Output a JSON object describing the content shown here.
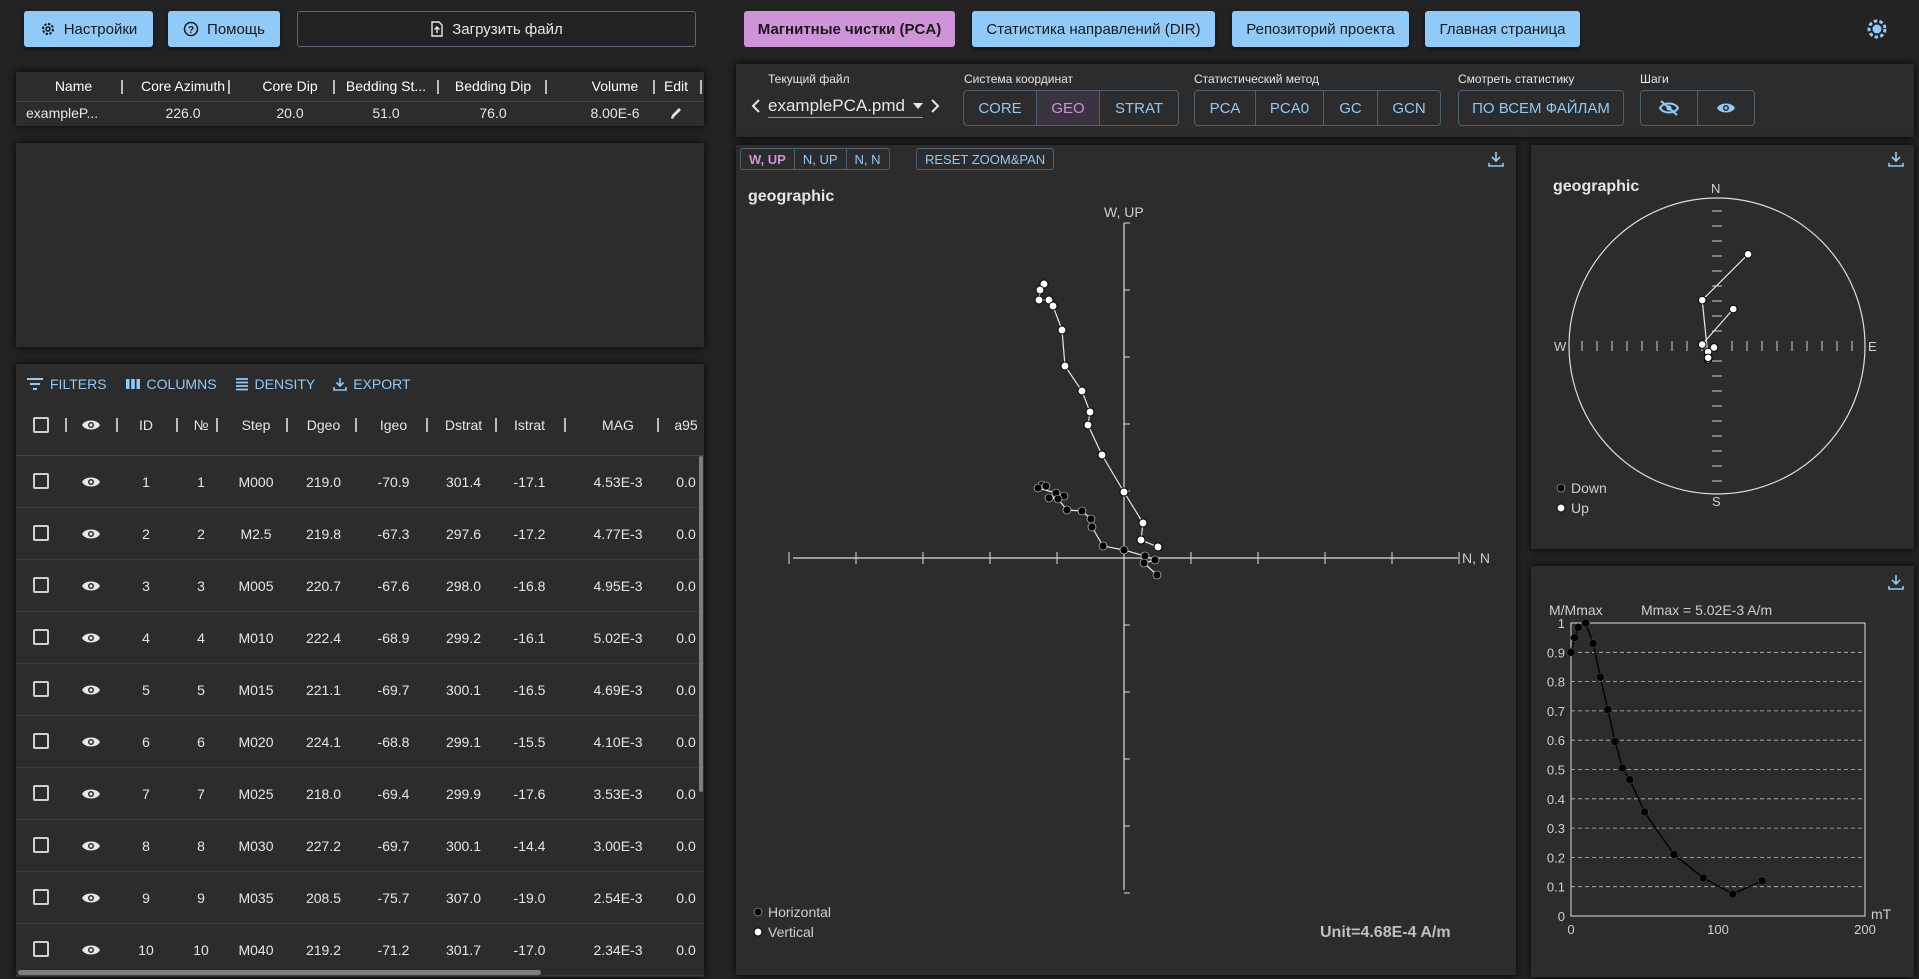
{
  "top_left": {
    "settings_label": "Настройки",
    "help_label": "Помощь",
    "upload_label": "Загрузить файл"
  },
  "file_table": {
    "columns": [
      "Name",
      "Core Azimuth",
      "Core Dip",
      "Bedding St...",
      "Bedding Dip",
      "Volume",
      "Edit"
    ],
    "row": [
      "exampleP...",
      "226.0",
      "20.0",
      "51.0",
      "76.0",
      "8.00E-6"
    ]
  },
  "toolbar": {
    "filters": "FILTERS",
    "columns": "COLUMNS",
    "density": "DENSITY",
    "export": "EXPORT"
  },
  "steps_table": {
    "columns": [
      "ID",
      "№",
      "Step",
      "Dgeo",
      "Igeo",
      "Dstrat",
      "Istrat",
      "MAG",
      "a95"
    ],
    "rows": [
      [
        "1",
        "1",
        "M000",
        "219.0",
        "-70.9",
        "301.4",
        "-17.1",
        "4.53E-3",
        "0.0"
      ],
      [
        "2",
        "2",
        "M2.5",
        "219.8",
        "-67.3",
        "297.6",
        "-17.2",
        "4.77E-3",
        "0.0"
      ],
      [
        "3",
        "3",
        "M005",
        "220.7",
        "-67.6",
        "298.0",
        "-16.8",
        "4.95E-3",
        "0.0"
      ],
      [
        "4",
        "4",
        "M010",
        "222.4",
        "-68.9",
        "299.2",
        "-16.1",
        "5.02E-3",
        "0.0"
      ],
      [
        "5",
        "5",
        "M015",
        "221.1",
        "-69.7",
        "300.1",
        "-16.5",
        "4.69E-3",
        "0.0"
      ],
      [
        "6",
        "6",
        "M020",
        "224.1",
        "-68.8",
        "299.1",
        "-15.5",
        "4.10E-3",
        "0.0"
      ],
      [
        "7",
        "7",
        "M025",
        "218.0",
        "-69.4",
        "299.9",
        "-17.6",
        "3.53E-3",
        "0.0"
      ],
      [
        "8",
        "8",
        "M030",
        "227.2",
        "-69.7",
        "300.1",
        "-14.4",
        "3.00E-3",
        "0.0"
      ],
      [
        "9",
        "9",
        "M035",
        "208.5",
        "-75.7",
        "307.0",
        "-19.0",
        "2.54E-3",
        "0.0"
      ],
      [
        "10",
        "10",
        "M040",
        "219.2",
        "-71.2",
        "301.7",
        "-17.0",
        "2.34E-3",
        "0.0"
      ]
    ]
  },
  "nav": {
    "pca": "Магнитные чистки (PCA)",
    "dir": "Статистика направлений (DIR)",
    "repo": "Репозиторий проекта",
    "home": "Главная страница"
  },
  "controls": {
    "current_file_label": "Текущий файл",
    "current_file": "examplePCA.pmd",
    "coord_label": "Система координат",
    "coord_options": [
      "CORE",
      "GEO",
      "STRAT"
    ],
    "coord_selected": "GEO",
    "method_label": "Статистический метод",
    "method_options": [
      "PCA",
      "PCA0",
      "GC",
      "GCN"
    ],
    "stats_label": "Смотреть статистику",
    "stats_button": "ПО ВСЕМ ФАЙЛАМ",
    "steps_label": "Шаги"
  },
  "zijderveld": {
    "proj_options": [
      "W, UP",
      "N, UP",
      "N, N"
    ],
    "proj_selected": "W, UP",
    "reset_label": "RESET ZOOM&PAN",
    "title": "geographic",
    "axis_v_label": "W, UP",
    "axis_h_label": "N, N",
    "legend_horizontal": "Horizontal",
    "legend_vertical": "Vertical",
    "unit": "Unit=4.68E-4 A/m"
  },
  "stereonet": {
    "title": "geographic",
    "n": "N",
    "s": "S",
    "e": "E",
    "w": "W",
    "legend_down": "Down",
    "legend_up": "Up"
  },
  "demag": {
    "ylabel": "M/Mmax",
    "mmax": "Mmax = 5.02E-3 A/m",
    "xlabel": "mT"
  },
  "chart_data": [
    {
      "type": "scatter",
      "title": "geographic",
      "xlabel": "N, N",
      "ylabel": "W, UP",
      "series": [
        {
          "name": "Horizontal",
          "points": [
            [
              -82,
              73
            ],
            [
              -78,
              72
            ],
            [
              -86,
              70
            ],
            [
              -68,
              65
            ],
            [
              -60,
              62
            ],
            [
              -75,
              60
            ],
            [
              -66,
              59
            ],
            [
              -57,
              48
            ],
            [
              -42,
              47
            ],
            [
              -33,
              39
            ],
            [
              -32,
              31
            ],
            [
              -21,
              12
            ],
            [
              0,
              8
            ],
            [
              21,
              2
            ],
            [
              31,
              -2
            ],
            [
              20,
              -5
            ],
            [
              33,
              -17
            ]
          ]
        },
        {
          "name": "Vertical",
          "points": [
            [
              -80,
              274
            ],
            [
              -84,
              268
            ],
            [
              -85,
              258
            ],
            [
              -75,
              258
            ],
            [
              -71,
              252
            ],
            [
              -62,
              228
            ],
            [
              -59,
              192
            ],
            [
              -42,
              167
            ],
            [
              -34,
              146
            ],
            [
              -36,
              133
            ],
            [
              -22,
              103
            ],
            [
              0,
              66
            ],
            [
              19,
              35
            ],
            [
              17,
              18
            ],
            [
              34,
              11
            ]
          ]
        }
      ]
    },
    {
      "type": "scatter",
      "title": "geographic",
      "series": [
        {
          "name": "Up",
          "points": [
            [
              0.11,
              0.25
            ],
            [
              -0.1,
              0.01
            ],
            [
              -0.06,
              -0.04
            ],
            [
              -0.02,
              -0.01
            ],
            [
              -0.06,
              -0.09
            ],
            [
              -0.06,
              -0.08
            ],
            [
              -0.1,
              0.31
            ],
            [
              0.21,
              0.62
            ]
          ]
        }
      ]
    },
    {
      "type": "line",
      "xlabel": "mT",
      "ylabel": "M/Mmax",
      "xlim": [
        0,
        200
      ],
      "ylim": [
        0,
        1
      ],
      "x": [
        0,
        2.5,
        5,
        10,
        15,
        20,
        25,
        30,
        35,
        40,
        50,
        70,
        90,
        110,
        130
      ],
      "values": [
        0.9,
        0.95,
        0.985,
        1.0,
        0.93,
        0.815,
        0.705,
        0.595,
        0.505,
        0.465,
        0.355,
        0.21,
        0.13,
        0.075,
        0.12
      ]
    }
  ]
}
